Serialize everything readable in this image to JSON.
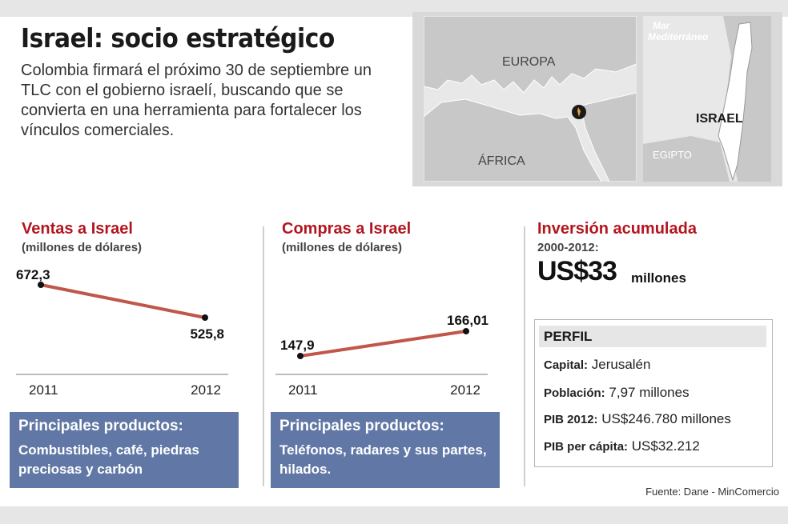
{
  "title": "Israel: socio estratégico",
  "intro": "Colombia firmará el próximo 30 de septiembre un TLC con el gobierno israelí, buscando que se convierta en una herramienta para fortalecer los vínculos comerciales.",
  "map": {
    "labels": {
      "europe": "EUROPA",
      "africa": "ÁFRICA",
      "sea": "Mar Mediterráneo",
      "israel": "ISRAEL",
      "egypt": "EGIPTO"
    }
  },
  "chart_data": [
    {
      "type": "line",
      "title": "Ventas a Israel",
      "subtitle": "(millones de dólares)",
      "x": [
        "2011",
        "2012"
      ],
      "values": [
        672.3,
        525.8
      ],
      "value_labels": [
        "672,3",
        "525,8"
      ],
      "line_color": "#c0574a"
    },
    {
      "type": "line",
      "title": "Compras a Israel",
      "subtitle": "(millones de dólares)",
      "x": [
        "2011",
        "2012"
      ],
      "values": [
        147.9,
        166.01
      ],
      "value_labels": [
        "147,9",
        "166,01"
      ],
      "line_color": "#c0574a"
    }
  ],
  "products": [
    {
      "title": "Principales productos:",
      "text": "Combustibles, café, piedras preciosas y carbón"
    },
    {
      "title": "Principales productos:",
      "text": "Teléfonos, radares y sus partes, hilados."
    }
  ],
  "investment": {
    "title": "Inversión acumulada",
    "period": "2000-2012:",
    "amount": "US$33",
    "unit": "millones"
  },
  "profile": {
    "title": "PERFIL",
    "rows": [
      {
        "label": "Capital:",
        "value": "Jerusalén"
      },
      {
        "label": "Población:",
        "value": "7,97 millones"
      },
      {
        "label": "PIB 2012:",
        "value": "US$246.780 millones"
      },
      {
        "label": "PIB per cápita:",
        "value": "US$32.212"
      }
    ]
  },
  "source": "Fuente: Dane - MinComercio",
  "colors": {
    "accent_red": "#b3151f",
    "product_box": "#6178a6",
    "line": "#c0574a",
    "map_land": "#c8c8c8",
    "map_sea": "#e8e8e8"
  }
}
